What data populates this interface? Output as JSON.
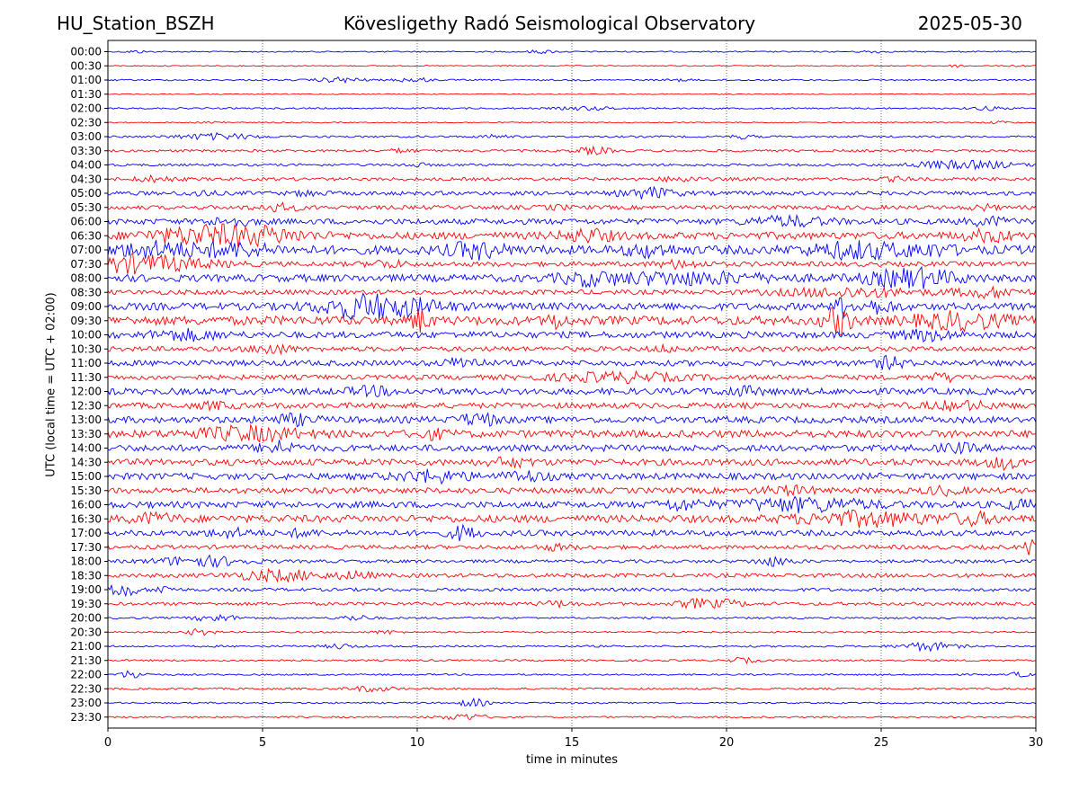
{
  "header": {
    "station": "HU_Station_BSZH",
    "observatory": "Kövesligethy Radó Seismological Observatory",
    "date": "2025-05-30"
  },
  "chart_data": {
    "type": "line",
    "title": "Kövesligethy Radó Seismological Observatory",
    "xlabel": "time in minutes",
    "ylabel": "UTC (local time = UTC + 02:00)",
    "xlim": [
      0,
      30
    ],
    "x_ticks": [
      0,
      5,
      10,
      15,
      20,
      25,
      30
    ],
    "x_gridlines": [
      5,
      10,
      15,
      20,
      25
    ],
    "grid": "vertical dotted",
    "colors": {
      "even_rows": "#0000ff",
      "odd_rows": "#ff0000"
    },
    "rows": [
      {
        "label": "00:00",
        "noise": 0.08,
        "events": [
          [
            0.9,
            0.25,
            0.15
          ],
          [
            14.0,
            0.3,
            0.2
          ],
          [
            24.7,
            0.25,
            0.15
          ]
        ]
      },
      {
        "label": "00:30",
        "noise": 0.07,
        "events": [
          [
            27.5,
            0.2,
            0.15
          ],
          [
            29.5,
            0.2,
            0.1
          ]
        ]
      },
      {
        "label": "01:00",
        "noise": 0.1,
        "events": [
          [
            7.5,
            0.5,
            0.3
          ],
          [
            9.9,
            0.4,
            0.25
          ],
          [
            18.5,
            0.3,
            0.1
          ]
        ]
      },
      {
        "label": "01:30",
        "noise": 0.06,
        "events": []
      },
      {
        "label": "02:00",
        "noise": 0.1,
        "events": [
          [
            15.5,
            0.6,
            0.2
          ],
          [
            28.5,
            0.4,
            0.2
          ]
        ]
      },
      {
        "label": "02:30",
        "noise": 0.07,
        "events": [
          [
            3.5,
            0.3,
            0.15
          ],
          [
            28.8,
            0.3,
            0.15
          ]
        ]
      },
      {
        "label": "03:00",
        "noise": 0.12,
        "events": [
          [
            3.5,
            0.9,
            0.35
          ],
          [
            12.5,
            0.3,
            0.2
          ],
          [
            20.5,
            0.3,
            0.2
          ]
        ]
      },
      {
        "label": "03:30",
        "noise": 0.15,
        "events": [
          [
            15.7,
            0.4,
            0.4
          ],
          [
            9.5,
            0.3,
            0.2
          ]
        ]
      },
      {
        "label": "04:00",
        "noise": 0.15,
        "events": [
          [
            27.0,
            0.8,
            0.4
          ],
          [
            28.5,
            0.7,
            0.3
          ],
          [
            9.9,
            0.3,
            0.2
          ]
        ]
      },
      {
        "label": "04:30",
        "noise": 0.2,
        "events": [
          [
            1.5,
            0.5,
            0.3
          ],
          [
            18.5,
            0.4,
            0.3
          ],
          [
            25.5,
            0.3,
            0.2
          ]
        ]
      },
      {
        "label": "05:00",
        "noise": 0.25,
        "events": [
          [
            17.5,
            0.6,
            0.6
          ],
          [
            3.0,
            0.3,
            0.3
          ],
          [
            6.5,
            0.3,
            0.3
          ]
        ]
      },
      {
        "label": "05:30",
        "noise": 0.25,
        "events": [
          [
            5.5,
            0.5,
            0.4
          ],
          [
            28.3,
            0.3,
            0.3
          ],
          [
            14.5,
            0.3,
            0.2
          ]
        ]
      },
      {
        "label": "06:00",
        "noise": 0.35,
        "events": [
          [
            22.0,
            0.9,
            0.5
          ],
          [
            4.0,
            0.5,
            0.4
          ],
          [
            28.5,
            0.5,
            0.4
          ]
        ]
      },
      {
        "label": "06:30",
        "noise": 0.45,
        "events": [
          [
            3.0,
            1.2,
            0.9
          ],
          [
            5.0,
            1.0,
            0.7
          ],
          [
            15.5,
            0.6,
            0.6
          ],
          [
            28.5,
            0.6,
            0.5
          ]
        ]
      },
      {
        "label": "07:00",
        "noise": 0.55,
        "events": [
          [
            1.5,
            0.9,
            0.7
          ],
          [
            4.0,
            0.9,
            0.6
          ],
          [
            11.9,
            0.6,
            0.8
          ],
          [
            17.5,
            0.5,
            0.6
          ],
          [
            24.2,
            1.0,
            0.8
          ],
          [
            26.5,
            0.6,
            0.5
          ]
        ]
      },
      {
        "label": "07:30",
        "noise": 0.3,
        "events": [
          [
            1.0,
            1.5,
            1.0
          ],
          [
            9.0,
            0.4,
            0.4
          ],
          [
            18.5,
            0.5,
            0.4
          ]
        ]
      },
      {
        "label": "08:00",
        "noise": 0.45,
        "events": [
          [
            18.5,
            2.0,
            0.6
          ],
          [
            26.0,
            1.0,
            1.0
          ],
          [
            15.5,
            0.6,
            0.5
          ]
        ]
      },
      {
        "label": "08:30",
        "noise": 0.3,
        "events": [
          [
            24.0,
            1.5,
            0.5
          ],
          [
            28.5,
            0.8,
            0.5
          ]
        ]
      },
      {
        "label": "09:00",
        "noise": 0.45,
        "events": [
          [
            8.0,
            0.9,
            1.0
          ],
          [
            9.5,
            1.0,
            0.8
          ],
          [
            23.7,
            0.1,
            1.4
          ],
          [
            24.8,
            0.5,
            0.6
          ]
        ]
      },
      {
        "label": "09:30",
        "noise": 0.55,
        "events": [
          [
            10.1,
            0.2,
            1.3
          ],
          [
            14.5,
            0.2,
            0.8
          ],
          [
            23.6,
            0.3,
            1.5
          ],
          [
            27.5,
            1.0,
            0.8
          ]
        ]
      },
      {
        "label": "10:00",
        "noise": 0.4,
        "events": [
          [
            2.5,
            0.8,
            0.5
          ],
          [
            26.5,
            0.6,
            0.5
          ]
        ]
      },
      {
        "label": "10:30",
        "noise": 0.3,
        "events": [
          [
            5.3,
            0.4,
            0.6
          ],
          [
            18.0,
            0.3,
            0.3
          ]
        ]
      },
      {
        "label": "11:00",
        "noise": 0.35,
        "events": [
          [
            11.5,
            0.4,
            0.6
          ],
          [
            25.3,
            0.3,
            0.7
          ]
        ]
      },
      {
        "label": "11:30",
        "noise": 0.3,
        "events": [
          [
            16.5,
            1.5,
            0.5
          ],
          [
            27.0,
            0.4,
            0.4
          ]
        ]
      },
      {
        "label": "12:00",
        "noise": 0.4,
        "events": [
          [
            8.5,
            0.5,
            0.4
          ],
          [
            20.5,
            0.5,
            0.4
          ]
        ]
      },
      {
        "label": "12:30",
        "noise": 0.35,
        "events": [
          [
            27.5,
            0.8,
            0.4
          ],
          [
            3.5,
            0.4,
            0.3
          ]
        ]
      },
      {
        "label": "13:00",
        "noise": 0.4,
        "events": [
          [
            12.0,
            0.4,
            0.7
          ],
          [
            6.0,
            0.5,
            0.5
          ]
        ]
      },
      {
        "label": "13:30",
        "noise": 0.45,
        "events": [
          [
            4.5,
            1.2,
            0.7
          ],
          [
            10.5,
            0.4,
            0.4
          ]
        ]
      },
      {
        "label": "14:00",
        "noise": 0.4,
        "events": [
          [
            5.5,
            0.4,
            0.7
          ],
          [
            27.5,
            0.4,
            0.4
          ]
        ]
      },
      {
        "label": "14:30",
        "noise": 0.4,
        "events": [
          [
            29.0,
            0.4,
            0.6
          ],
          [
            13.0,
            0.5,
            0.4
          ]
        ]
      },
      {
        "label": "15:00",
        "noise": 0.4,
        "events": [
          [
            10.5,
            0.8,
            0.6
          ],
          [
            13.5,
            0.5,
            0.5
          ]
        ]
      },
      {
        "label": "15:30",
        "noise": 0.35,
        "events": [
          [
            22.0,
            0.6,
            0.4
          ],
          [
            27.0,
            0.4,
            0.4
          ]
        ]
      },
      {
        "label": "16:00",
        "noise": 0.4,
        "events": [
          [
            22.5,
            1.5,
            0.7
          ],
          [
            18.5,
            0.5,
            0.5
          ],
          [
            29.5,
            0.4,
            0.4
          ]
        ]
      },
      {
        "label": "16:30",
        "noise": 0.45,
        "events": [
          [
            24.5,
            1.5,
            0.7
          ],
          [
            1.5,
            0.5,
            0.5
          ],
          [
            28.0,
            0.5,
            0.5
          ]
        ]
      },
      {
        "label": "17:00",
        "noise": 0.35,
        "events": [
          [
            11.5,
            0.3,
            0.8
          ],
          [
            4.0,
            0.5,
            0.4
          ],
          [
            6.3,
            0.3,
            0.4
          ]
        ]
      },
      {
        "label": "17:30",
        "noise": 0.25,
        "events": [
          [
            29.8,
            0.1,
            1.0
          ],
          [
            14.5,
            0.4,
            0.3
          ]
        ]
      },
      {
        "label": "18:00",
        "noise": 0.2,
        "events": [
          [
            3.0,
            1.0,
            0.6
          ],
          [
            21.5,
            0.4,
            0.5
          ]
        ]
      },
      {
        "label": "18:30",
        "noise": 0.25,
        "events": [
          [
            5.5,
            1.0,
            0.6
          ],
          [
            8.0,
            0.4,
            0.4
          ]
        ]
      },
      {
        "label": "19:00",
        "noise": 0.2,
        "events": [
          [
            0.5,
            0.3,
            0.9
          ],
          [
            1.8,
            0.2,
            0.5
          ]
        ]
      },
      {
        "label": "19:30",
        "noise": 0.2,
        "events": [
          [
            19.0,
            0.4,
            0.5
          ],
          [
            20.0,
            0.4,
            0.4
          ],
          [
            14.5,
            0.4,
            0.3
          ]
        ]
      },
      {
        "label": "20:00",
        "noise": 0.12,
        "events": [
          [
            3.5,
            0.5,
            0.4
          ],
          [
            8.0,
            0.4,
            0.3
          ]
        ]
      },
      {
        "label": "20:30",
        "noise": 0.1,
        "events": [
          [
            3.0,
            0.3,
            0.4
          ],
          [
            9.0,
            0.3,
            0.2
          ]
        ]
      },
      {
        "label": "21:00",
        "noise": 0.12,
        "events": [
          [
            26.5,
            0.6,
            0.5
          ],
          [
            7.5,
            0.3,
            0.3
          ]
        ]
      },
      {
        "label": "21:30",
        "noise": 0.12,
        "events": [
          [
            20.5,
            0.3,
            0.3
          ]
        ]
      },
      {
        "label": "22:00",
        "noise": 0.1,
        "events": [
          [
            0.8,
            0.3,
            0.5
          ],
          [
            29.5,
            0.2,
            0.3
          ]
        ]
      },
      {
        "label": "22:30",
        "noise": 0.12,
        "events": [
          [
            8.5,
            0.5,
            0.3
          ]
        ]
      },
      {
        "label": "23:00",
        "noise": 0.1,
        "events": [
          [
            11.8,
            0.3,
            0.5
          ]
        ]
      },
      {
        "label": "23:30",
        "noise": 0.1,
        "events": [
          [
            11.5,
            0.5,
            0.4
          ]
        ]
      }
    ]
  }
}
